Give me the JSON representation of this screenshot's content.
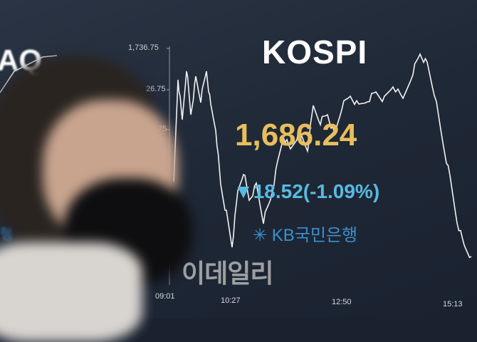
{
  "board": {
    "left_title_fragment": "AQ",
    "left_label_fragment": "행",
    "title": "KOSPI",
    "value": "1,686.24",
    "change_arrow": "▼",
    "change": "18.52(-1.09%)",
    "sponsor": "KB국민은행",
    "y_ticks": [
      "1,736.75",
      "26.75",
      "75"
    ],
    "x_ticks": [
      "09:01",
      "10:27",
      "12:50",
      "15:13"
    ],
    "value_color": "#e8be5c",
    "change_color": "#59b9e0"
  },
  "watermark": "이데일리"
}
